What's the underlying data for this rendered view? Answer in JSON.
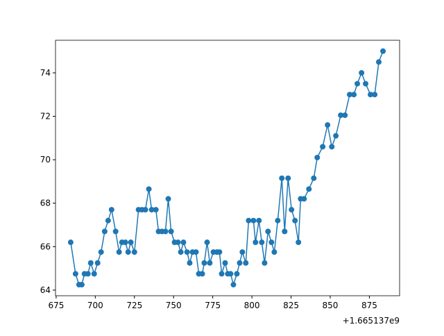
{
  "chart_data": {
    "type": "line",
    "x_offset_label": "+1.665137e9",
    "x": [
      684.3,
      687.4,
      689.6,
      691.4,
      693.1,
      695.3,
      697.1,
      699.3,
      701.5,
      703.7,
      706,
      708.2,
      710.4,
      713,
      715.2,
      717,
      719.2,
      721,
      722.7,
      725,
      727.6,
      729.8,
      732,
      734.2,
      736,
      738.7,
      740.4,
      742.6,
      744.8,
      746.6,
      748.4,
      750.6,
      752.8,
      754.6,
      756.3,
      758.6,
      760.3,
      762.1,
      764.3,
      766.1,
      768.3,
      769.6,
      771.4,
      773.1,
      775.4,
      777.6,
      779.3,
      780.7,
      782.9,
      784.6,
      786.4,
      788.2,
      790.4,
      792.2,
      793.9,
      796.1,
      797.9,
      801,
      802.3,
      804.5,
      806.3,
      808.1,
      810.3,
      812.5,
      814.3,
      816.5,
      819.1,
      820.9,
      823.1,
      825.3,
      827.5,
      829.7,
      831.1,
      833.3,
      836.4,
      839.5,
      841.7,
      845.2,
      848.3,
      851,
      853.6,
      856.7,
      859.4,
      862.4,
      865.1,
      867.3,
      870,
      872.6,
      875.7,
      878.4,
      881,
      883.7
    ],
    "series": [
      {
        "color": "#1f77b4",
        "values": [
          66.2,
          64.75,
          64.25,
          64.25,
          64.75,
          64.75,
          65.25,
          64.75,
          65.25,
          65.75,
          66.7,
          67.2,
          67.7,
          66.7,
          65.75,
          66.2,
          66.2,
          65.75,
          66.2,
          65.75,
          67.7,
          67.7,
          67.7,
          68.65,
          67.7,
          67.7,
          66.7,
          66.7,
          66.7,
          68.2,
          66.7,
          66.2,
          66.2,
          65.75,
          66.2,
          65.75,
          65.25,
          65.75,
          65.75,
          64.75,
          64.75,
          65.25,
          66.2,
          65.25,
          65.75,
          65.75,
          65.75,
          64.75,
          65.25,
          64.75,
          64.75,
          64.25,
          64.75,
          65.25,
          65.75,
          65.25,
          67.2,
          67.2,
          66.2,
          67.2,
          66.2,
          65.25,
          66.7,
          66.2,
          65.75,
          67.2,
          69.15,
          66.7,
          69.15,
          67.7,
          67.2,
          66.2,
          68.2,
          68.2,
          68.65,
          69.15,
          70.1,
          70.6,
          71.6,
          70.6,
          71.1,
          72.05,
          72.05,
          73.0,
          73.0,
          73.5,
          74.0,
          73.5,
          73.0,
          73.0,
          74.5,
          75.0
        ]
      }
    ],
    "xlim": [
      674.6,
      894.3
    ],
    "ylim": [
      63.74,
      75.5
    ],
    "xticks": [
      675,
      700,
      725,
      750,
      775,
      800,
      825,
      850,
      875
    ],
    "yticks": [
      64,
      66,
      68,
      70,
      72,
      74
    ]
  }
}
